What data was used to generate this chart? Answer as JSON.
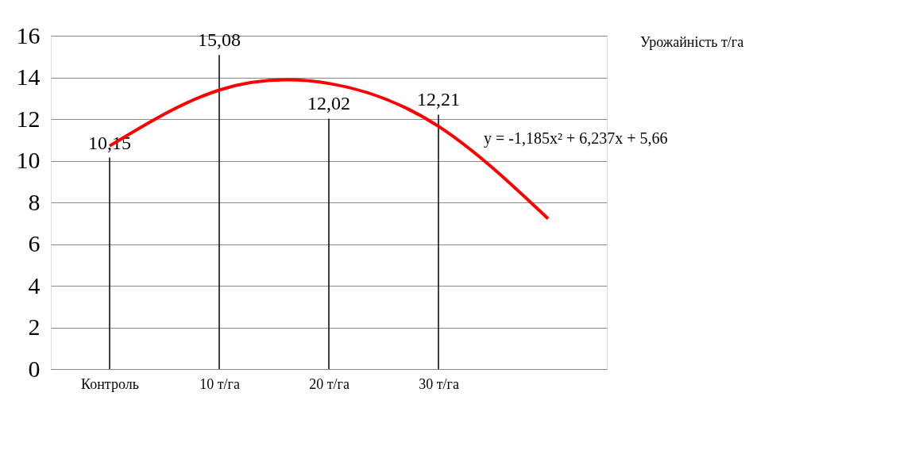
{
  "chart_data": {
    "type": "bar",
    "categories": [
      "Контроль",
      "10 т/га",
      "20 т/га",
      "30 т/га",
      null
    ],
    "ylim": [
      0,
      16
    ],
    "yticks": [
      0,
      2,
      4,
      6,
      8,
      10,
      12,
      14,
      16
    ],
    "grid": "y",
    "legend": "right",
    "series": [
      {
        "name": "Урожайність т/га",
        "color": "#000000",
        "values": [
          10.15,
          15.08,
          12.02,
          12.21,
          null
        ],
        "value_labels": [
          "10,15",
          "15,08",
          "12,02",
          "12,21",
          null
        ]
      },
      {
        "type": "line",
        "color": "#ff0000",
        "values": [
          10.71,
          13.39,
          13.71,
          11.65,
          7.22
        ]
      }
    ],
    "annotations": [
      "y = -1,185x² + 6,237x + 5,66"
    ]
  }
}
